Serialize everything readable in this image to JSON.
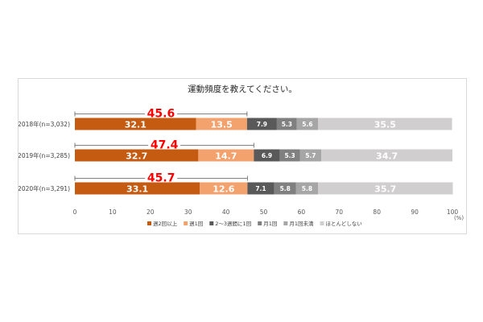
{
  "chart_data": {
    "type": "bar",
    "orientation": "horizontal",
    "stacked": true,
    "title": "運動頻度を教えてください。",
    "categories": [
      "2018年(n=3,032)",
      "2019年(n=3,285)",
      "2020年(n=3,291)"
    ],
    "series": [
      {
        "name": "週2回以上",
        "color": "#c55a11",
        "values": [
          32.1,
          32.7,
          33.1
        ]
      },
      {
        "name": "週1回",
        "color": "#f4a26d",
        "values": [
          13.5,
          14.7,
          12.6
        ]
      },
      {
        "name": "2～3週間に1回",
        "color": "#595959",
        "values": [
          7.9,
          6.9,
          7.1
        ]
      },
      {
        "name": "月1回",
        "color": "#808080",
        "values": [
          5.3,
          5.3,
          5.8
        ]
      },
      {
        "name": "月1回未満",
        "color": "#a6a6a6",
        "values": [
          5.6,
          5.7,
          5.8
        ]
      },
      {
        "name": "ほとんどしない",
        "color": "#d0cece",
        "values": [
          35.5,
          34.7,
          35.7
        ]
      }
    ],
    "totals": {
      "label_color": "#ff0000",
      "values": [
        45.6,
        47.4,
        45.7
      ]
    },
    "xlim": [
      0,
      100
    ],
    "xticks": [
      "0",
      "10",
      "20",
      "30",
      "40",
      "50",
      "60",
      "70",
      "80",
      "90",
      "100"
    ],
    "xunit": "(%)",
    "grid": false,
    "legend_position": "bottom"
  }
}
